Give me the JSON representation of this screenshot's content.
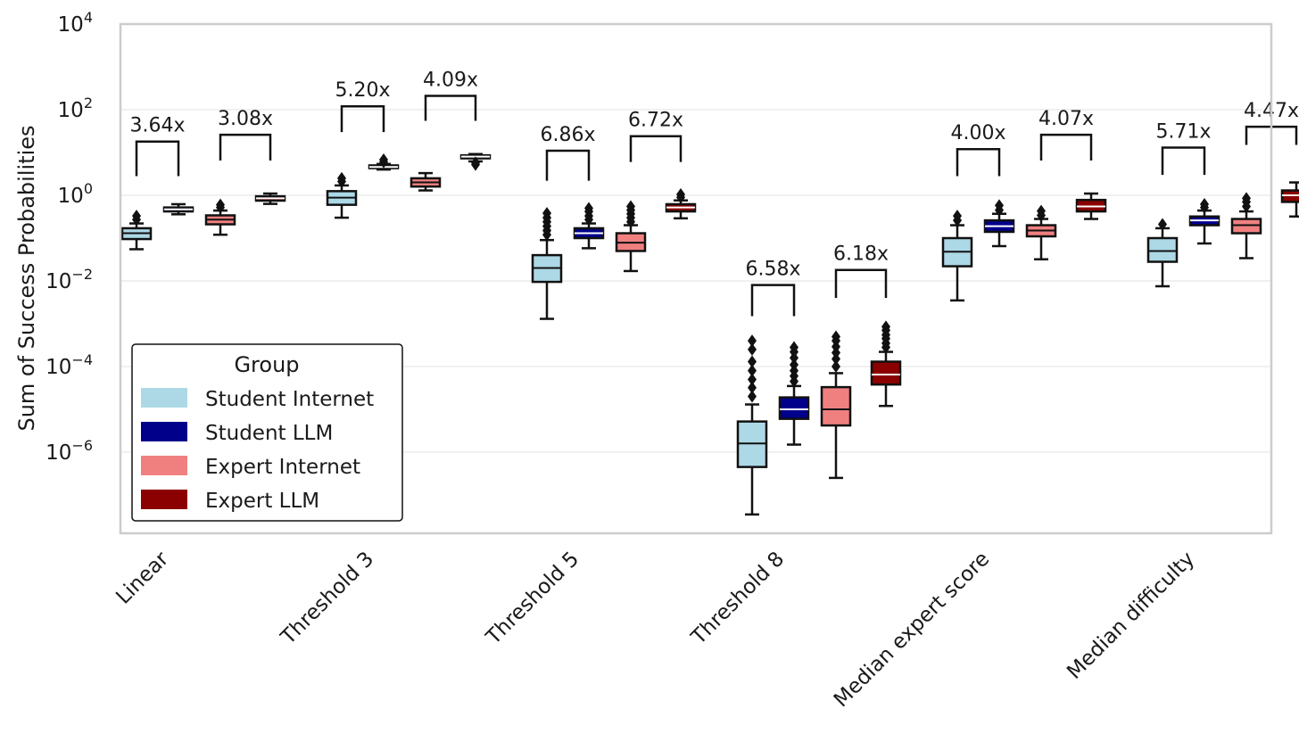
{
  "chart_data": {
    "type": "box",
    "ylabel": "Sum of Success Probabilities",
    "yscale": "log",
    "ylim": [
      1e-08,
      10000
    ],
    "yticks": [
      {
        "value": 10000,
        "base": "10",
        "exp": "4"
      },
      {
        "value": 100,
        "base": "10",
        "exp": "2"
      },
      {
        "value": 1,
        "base": "10",
        "exp": "0"
      },
      {
        "value": 0.01,
        "base": "10",
        "exp": "−2"
      },
      {
        "value": 0.0001,
        "base": "10",
        "exp": "−4"
      },
      {
        "value": 1e-06,
        "base": "10",
        "exp": "−6"
      }
    ],
    "grid": true,
    "legend": {
      "title": "Group",
      "position": "lower-left",
      "entries": [
        {
          "label": "Student Internet",
          "color": "#add8e6"
        },
        {
          "label": "Student LLM",
          "color": "#00008b"
        },
        {
          "label": "Expert Internet",
          "color": "#f08080"
        },
        {
          "label": "Expert LLM",
          "color": "#8b0000"
        }
      ]
    },
    "categories": [
      "Linear",
      "Threshold 3",
      "Threshold 5",
      "Threshold 8",
      "Median expert score",
      "Median difficulty"
    ],
    "series": [
      {
        "name": "Student Internet",
        "color": "#add8e6",
        "median_color": "#111111",
        "boxes": [
          {
            "whislo": 0.055,
            "q1": 0.095,
            "med": 0.13,
            "q3": 0.17,
            "whishi": 0.22,
            "fliers": [
              0.27,
              0.33
            ]
          },
          {
            "whislo": 0.3,
            "q1": 0.6,
            "med": 0.88,
            "q3": 1.25,
            "whishi": 1.7,
            "fliers": [
              2.1,
              2.5
            ]
          },
          {
            "whislo": 0.0013,
            "q1": 0.0095,
            "med": 0.02,
            "q3": 0.04,
            "whishi": 0.09,
            "fliers": [
              0.12,
              0.15,
              0.19,
              0.24,
              0.3,
              0.38
            ]
          },
          {
            "whislo": 3.5e-08,
            "q1": 4.5e-07,
            "med": 1.6e-06,
            "q3": 5.2e-06,
            "whishi": 1.3e-05,
            "fliers": [
              2e-05,
              3.2e-05,
              5e-05,
              8e-05,
              0.00013,
              0.00025,
              0.0004
            ]
          },
          {
            "whislo": 0.0035,
            "q1": 0.022,
            "med": 0.048,
            "q3": 0.1,
            "whishi": 0.2,
            "fliers": [
              0.26,
              0.33
            ]
          },
          {
            "whislo": 0.0075,
            "q1": 0.028,
            "med": 0.05,
            "q3": 0.1,
            "whishi": 0.17,
            "fliers": [
              0.21
            ]
          }
        ]
      },
      {
        "name": "Student LLM",
        "color": "#00008b",
        "median_color": "#ffffff",
        "boxes": [
          {
            "whislo": 0.36,
            "q1": 0.42,
            "med": 0.47,
            "q3": 0.52,
            "whishi": 0.62,
            "fliers": []
          },
          {
            "whislo": 4.0,
            "q1": 4.3,
            "med": 4.6,
            "q3": 5.0,
            "whishi": 5.4,
            "fliers": [
              6.0,
              6.8
            ]
          },
          {
            "whislo": 0.058,
            "q1": 0.1,
            "med": 0.13,
            "q3": 0.17,
            "whishi": 0.22,
            "fliers": [
              0.27,
              0.33,
              0.42,
              0.5
            ]
          },
          {
            "whislo": 1.5e-06,
            "q1": 6e-06,
            "med": 1e-05,
            "q3": 1.9e-05,
            "whishi": 3.5e-05,
            "fliers": [
              4.5e-05,
              6e-05,
              8e-05,
              0.00011,
              0.00016,
              0.00022,
              0.00028
            ]
          },
          {
            "whislo": 0.065,
            "q1": 0.14,
            "med": 0.19,
            "q3": 0.26,
            "whishi": 0.37,
            "fliers": [
              0.45,
              0.58
            ]
          },
          {
            "whislo": 0.075,
            "q1": 0.2,
            "med": 0.26,
            "q3": 0.32,
            "whishi": 0.44,
            "fliers": [
              0.52,
              0.62
            ]
          }
        ]
      },
      {
        "name": "Expert Internet",
        "color": "#f08080",
        "median_color": "#111111",
        "boxes": [
          {
            "whislo": 0.12,
            "q1": 0.21,
            "med": 0.27,
            "q3": 0.34,
            "whishi": 0.44,
            "fliers": [
              0.52,
              0.6
            ]
          },
          {
            "whislo": 1.3,
            "q1": 1.6,
            "med": 2.0,
            "q3": 2.5,
            "whishi": 3.3,
            "fliers": []
          },
          {
            "whislo": 0.017,
            "q1": 0.05,
            "med": 0.078,
            "q3": 0.13,
            "whishi": 0.2,
            "fliers": [
              0.24,
              0.3,
              0.37,
              0.45,
              0.55
            ]
          },
          {
            "whislo": 2.5e-07,
            "q1": 4.2e-06,
            "med": 1e-05,
            "q3": 3.3e-05,
            "whishi": 7e-05,
            "fliers": [
              0.0001,
              0.00015,
              0.00021,
              0.00029,
              0.0004,
              0.0005
            ]
          },
          {
            "whislo": 0.032,
            "q1": 0.11,
            "med": 0.15,
            "q3": 0.2,
            "whishi": 0.28,
            "fliers": [
              0.34,
              0.43
            ]
          },
          {
            "whislo": 0.034,
            "q1": 0.13,
            "med": 0.2,
            "q3": 0.28,
            "whishi": 0.42,
            "fliers": [
              0.55,
              0.7,
              0.85
            ]
          }
        ]
      },
      {
        "name": "Expert LLM",
        "color": "#8b0000",
        "median_color": "#ffffff",
        "boxes": [
          {
            "whislo": 0.63,
            "q1": 0.75,
            "med": 0.85,
            "q3": 0.95,
            "whishi": 1.1,
            "fliers": []
          },
          {
            "whislo": 6.2,
            "q1": 7.3,
            "med": 8.0,
            "q3": 8.6,
            "whishi": 9.2,
            "fliers": [
              5.2,
              5.8
            ]
          },
          {
            "whislo": 0.29,
            "q1": 0.42,
            "med": 0.52,
            "q3": 0.62,
            "whishi": 0.76,
            "fliers": [
              0.9,
              1.05
            ]
          },
          {
            "whislo": 1.2e-05,
            "q1": 3.8e-05,
            "med": 6.5e-05,
            "q3": 0.00013,
            "whishi": 0.00022,
            "fliers": [
              0.00028,
              0.00035,
              0.00045,
              0.00055,
              0.0007,
              0.00085
            ]
          },
          {
            "whislo": 0.28,
            "q1": 0.42,
            "med": 0.55,
            "q3": 0.78,
            "whishi": 1.1,
            "fliers": []
          },
          {
            "whislo": 0.32,
            "q1": 0.7,
            "med": 1.0,
            "q3": 1.3,
            "whishi": 2.0,
            "fliers": []
          }
        ]
      }
    ],
    "annotations": [
      {
        "category": "Linear",
        "pair": "Student",
        "text": "3.64x",
        "bracket_bottom": 2.8,
        "bracket_top": 18
      },
      {
        "category": "Linear",
        "pair": "Expert",
        "text": "3.08x",
        "bracket_bottom": 6.5,
        "bracket_top": 26
      },
      {
        "category": "Threshold 3",
        "pair": "Student",
        "text": "5.20x",
        "bracket_bottom": 30,
        "bracket_top": 120
      },
      {
        "category": "Threshold 3",
        "pair": "Expert",
        "text": "4.09x",
        "bracket_bottom": 55,
        "bracket_top": 210
      },
      {
        "category": "Threshold 5",
        "pair": "Student",
        "text": "6.86x",
        "bracket_bottom": 2.2,
        "bracket_top": 11
      },
      {
        "category": "Threshold 5",
        "pair": "Expert",
        "text": "6.72x",
        "bracket_bottom": 6.0,
        "bracket_top": 24
      },
      {
        "category": "Threshold 8",
        "pair": "Student",
        "text": "6.58x",
        "bracket_bottom": 0.0015,
        "bracket_top": 0.008
      },
      {
        "category": "Threshold 8",
        "pair": "Expert",
        "text": "6.18x",
        "bracket_bottom": 0.004,
        "bracket_top": 0.018
      },
      {
        "category": "Median expert score",
        "pair": "Student",
        "text": "4.00x",
        "bracket_bottom": 2.8,
        "bracket_top": 12
      },
      {
        "category": "Median expert score",
        "pair": "Expert",
        "text": "4.07x",
        "bracket_bottom": 6.5,
        "bracket_top": 26
      },
      {
        "category": "Median difficulty",
        "pair": "Student",
        "text": "5.71x",
        "bracket_bottom": 3.0,
        "bracket_top": 13
      },
      {
        "category": "Median difficulty",
        "pair": "Expert",
        "text": "4.47x",
        "bracket_bottom": 15,
        "bracket_top": 40
      }
    ]
  }
}
